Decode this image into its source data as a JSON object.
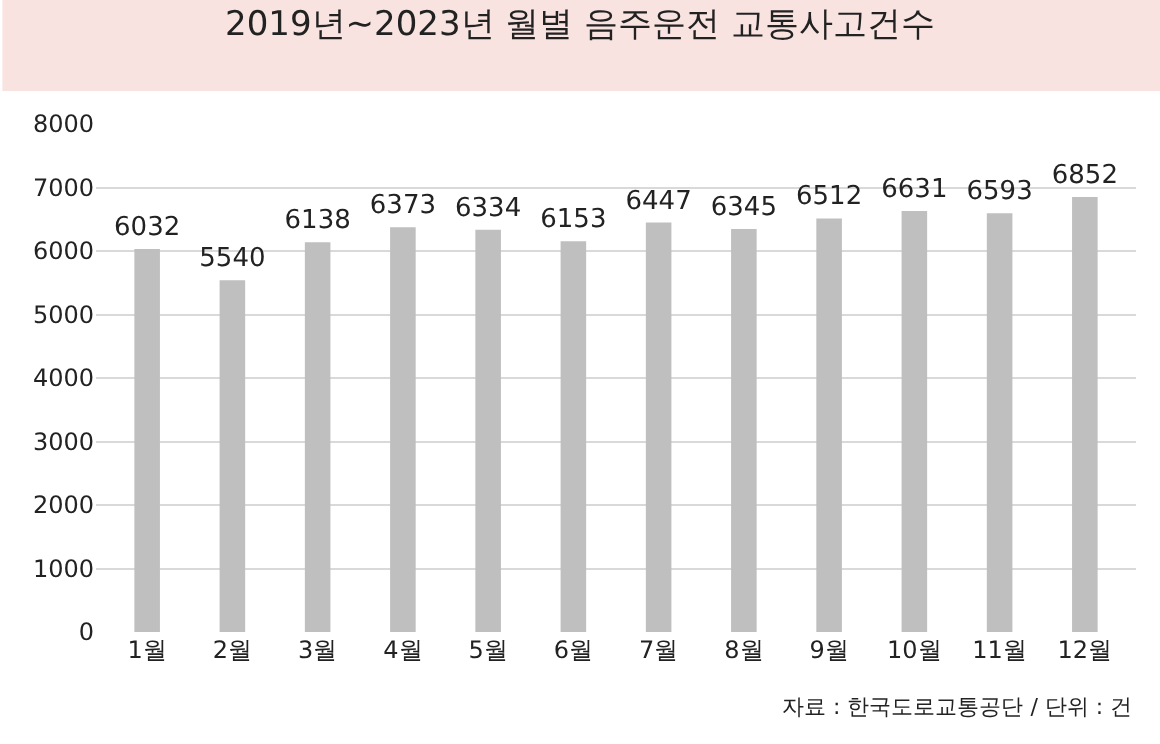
{
  "chart_data": {
    "type": "bar",
    "title": "2019년~2023년 월별 음주운전 교통사고건수",
    "categories": [
      "1월",
      "2월",
      "3월",
      "4월",
      "5월",
      "6월",
      "7월",
      "8월",
      "9월",
      "10월",
      "11월",
      "12월"
    ],
    "values": [
      6032,
      5540,
      6138,
      6373,
      6334,
      6153,
      6447,
      6345,
      6512,
      6631,
      6593,
      6852
    ],
    "color": "#bfbfbf",
    "data_labels": true,
    "grid": "y",
    "ylim": [
      0,
      8000
    ],
    "yticks": [
      0,
      1000,
      2000,
      3000,
      4000,
      5000,
      6000,
      7000,
      8000
    ],
    "annotations": [
      "자료 : 한국도로교통공단 / 단위 : 건"
    ]
  }
}
